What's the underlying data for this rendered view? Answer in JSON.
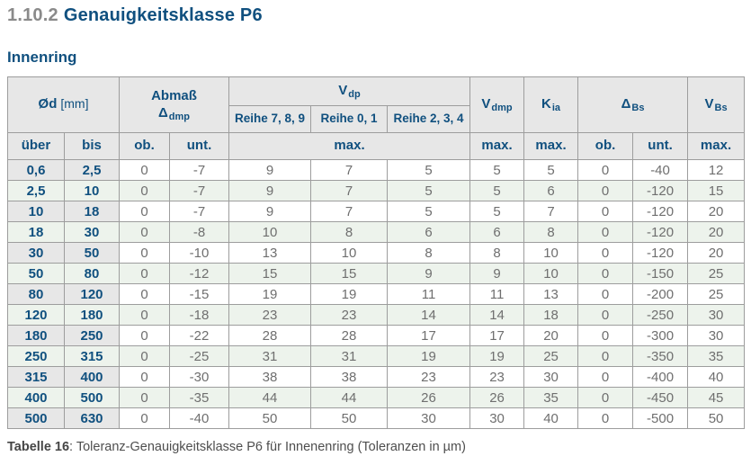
{
  "title": {
    "number": "1.10.2",
    "text": "Genauigkeitsklasse P6"
  },
  "subtitle": "Innenring",
  "caption": {
    "label": "Tabelle 16",
    "text": ": Toleranz-Genauigkeitsklasse P6 für Innenenring (Toleranzen in µm)"
  },
  "colors": {
    "accent_blue": "#10507f",
    "header_bg": "#e7e7e7",
    "stripe_green": "#edf3ec",
    "border_gray": "#9d9d9d",
    "data_text_gray": "#6f6f6f",
    "title_number_gray": "#8a8a8a"
  },
  "table": {
    "header": {
      "od": {
        "base": "Ød",
        "unit": "[mm]"
      },
      "abmass": {
        "line1": "Abmaß",
        "sym": "Δ",
        "sub": "dmp"
      },
      "vdp": {
        "base": "V",
        "sub": "dp"
      },
      "reihe": [
        "Reihe 7, 8, 9",
        "Reihe 0, 1",
        "Reihe 2, 3, 4"
      ],
      "vdmp": {
        "base": "V",
        "sub": "dmp"
      },
      "kia": {
        "base": "K",
        "sub": "ia"
      },
      "dbs": {
        "base": "Δ",
        "sub": "Bs"
      },
      "vbs": {
        "base": "V",
        "sub": "Bs"
      }
    },
    "subheader": {
      "ueber": "über",
      "bis": "bis",
      "ob1": "ob.",
      "unt1": "unt.",
      "max_vdp": "max.",
      "max_vdmp": "max.",
      "max_kia": "max.",
      "ob2": "ob.",
      "unt2": "unt.",
      "max_vbs": "max."
    },
    "rows": [
      [
        "0,6",
        "2,5",
        "0",
        "-7",
        "9",
        "7",
        "5",
        "5",
        "5",
        "0",
        "-40",
        "12"
      ],
      [
        "2,5",
        "10",
        "0",
        "-7",
        "9",
        "7",
        "5",
        "5",
        "6",
        "0",
        "-120",
        "15"
      ],
      [
        "10",
        "18",
        "0",
        "-7",
        "9",
        "7",
        "5",
        "5",
        "7",
        "0",
        "-120",
        "20"
      ],
      [
        "18",
        "30",
        "0",
        "-8",
        "10",
        "8",
        "6",
        "6",
        "8",
        "0",
        "-120",
        "20"
      ],
      [
        "30",
        "50",
        "0",
        "-10",
        "13",
        "10",
        "8",
        "8",
        "10",
        "0",
        "-120",
        "20"
      ],
      [
        "50",
        "80",
        "0",
        "-12",
        "15",
        "15",
        "9",
        "9",
        "10",
        "0",
        "-150",
        "25"
      ],
      [
        "80",
        "120",
        "0",
        "-15",
        "19",
        "19",
        "11",
        "11",
        "13",
        "0",
        "-200",
        "25"
      ],
      [
        "120",
        "180",
        "0",
        "-18",
        "23",
        "23",
        "14",
        "14",
        "18",
        "0",
        "-250",
        "30"
      ],
      [
        "180",
        "250",
        "0",
        "-22",
        "28",
        "28",
        "17",
        "17",
        "20",
        "0",
        "-300",
        "30"
      ],
      [
        "250",
        "315",
        "0",
        "-25",
        "31",
        "31",
        "19",
        "19",
        "25",
        "0",
        "-350",
        "35"
      ],
      [
        "315",
        "400",
        "0",
        "-30",
        "38",
        "38",
        "23",
        "23",
        "30",
        "0",
        "-400",
        "40"
      ],
      [
        "400",
        "500",
        "0",
        "-35",
        "44",
        "44",
        "26",
        "26",
        "35",
        "0",
        "-450",
        "45"
      ],
      [
        "500",
        "630",
        "0",
        "-40",
        "50",
        "50",
        "30",
        "30",
        "40",
        "0",
        "-500",
        "50"
      ]
    ]
  }
}
